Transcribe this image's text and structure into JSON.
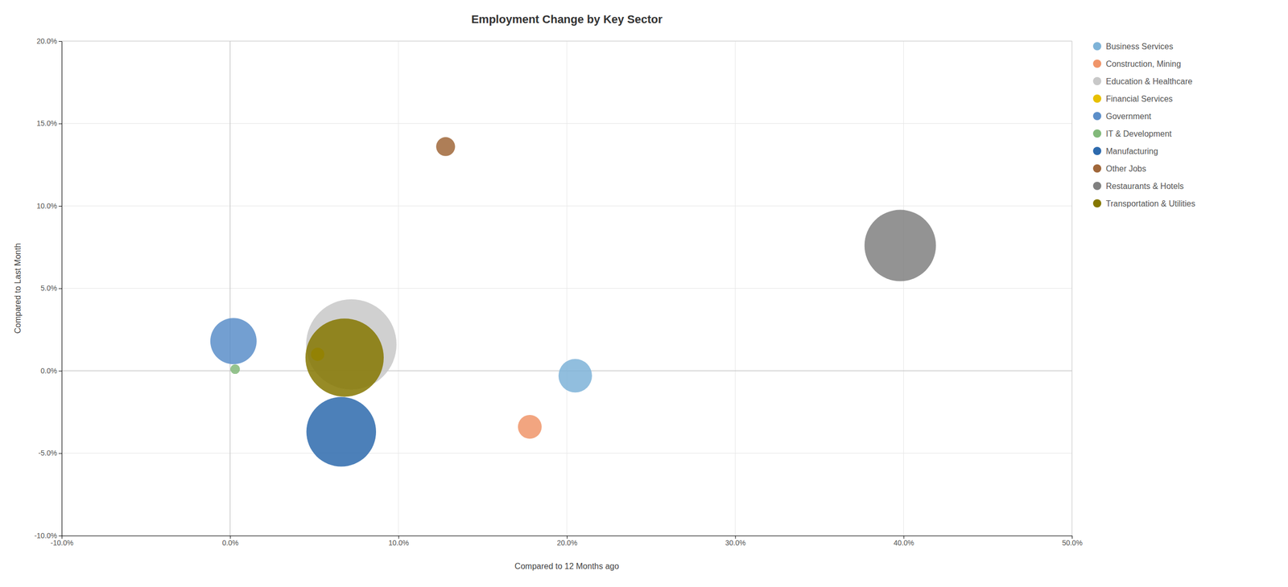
{
  "chart_data": {
    "type": "bubble",
    "title": "Employment Change by Key Sector",
    "xlabel": "Compared to 12 Months ago",
    "ylabel": "Compared to Last Month",
    "xlim": [
      -0.1,
      0.5
    ],
    "ylim": [
      -0.1,
      0.2
    ],
    "xticks": [
      {
        "value": -0.1,
        "label": "-10.0%"
      },
      {
        "value": 0.0,
        "label": "0.0%"
      },
      {
        "value": 0.1,
        "label": "10.0%"
      },
      {
        "value": 0.2,
        "label": "20.0%"
      },
      {
        "value": 0.3,
        "label": "30.0%"
      },
      {
        "value": 0.4,
        "label": "40.0%"
      },
      {
        "value": 0.5,
        "label": "50.0%"
      }
    ],
    "yticks": [
      {
        "value": -0.1,
        "label": "-10.0%"
      },
      {
        "value": -0.05,
        "label": "-5.0%"
      },
      {
        "value": 0.0,
        "label": "0.0%"
      },
      {
        "value": 0.05,
        "label": "5.0%"
      },
      {
        "value": 0.1,
        "label": "10.0%"
      },
      {
        "value": 0.15,
        "label": "15.0%"
      },
      {
        "value": 0.2,
        "label": "20.0%"
      }
    ],
    "grid": true,
    "legend": "right",
    "series": [
      {
        "name": "Business Services",
        "color": "#7eb3d8",
        "x": [
          0.205
        ],
        "values": [
          -0.003
        ],
        "size": [
          2200
        ]
      },
      {
        "name": "Construction, Mining",
        "color": "#f0956a",
        "x": [
          0.178
        ],
        "values": [
          -0.034
        ],
        "size": [
          1100
        ]
      },
      {
        "name": "Education & Healthcare",
        "color": "#c8c8c8",
        "x": [
          0.072
        ],
        "values": [
          0.016
        ],
        "size": [
          16000
        ]
      },
      {
        "name": "Financial Services",
        "color": "#e8c000",
        "x": [
          0.052
        ],
        "values": [
          0.01
        ],
        "size": [
          350
        ]
      },
      {
        "name": "Government",
        "color": "#5b8ec9",
        "x": [
          0.002
        ],
        "values": [
          0.018
        ],
        "size": [
          4200
        ]
      },
      {
        "name": "IT & Development",
        "color": "#82b97a",
        "x": [
          0.003
        ],
        "values": [
          0.001
        ],
        "size": [
          180
        ]
      },
      {
        "name": "Manufacturing",
        "color": "#2d6aad",
        "x": [
          0.066
        ],
        "values": [
          -0.037
        ],
        "size": [
          9500
        ]
      },
      {
        "name": "Other Jobs",
        "color": "#a0673a",
        "x": [
          0.128
        ],
        "values": [
          0.136
        ],
        "size": [
          700
        ]
      },
      {
        "name": "Restaurants & Hotels",
        "color": "#808080",
        "x": [
          0.398
        ],
        "values": [
          0.076
        ],
        "size": [
          10000
        ]
      },
      {
        "name": "Transportation & Utilities",
        "color": "#857700",
        "x": [
          0.068
        ],
        "values": [
          0.008
        ],
        "size": [
          12000
        ]
      }
    ]
  }
}
